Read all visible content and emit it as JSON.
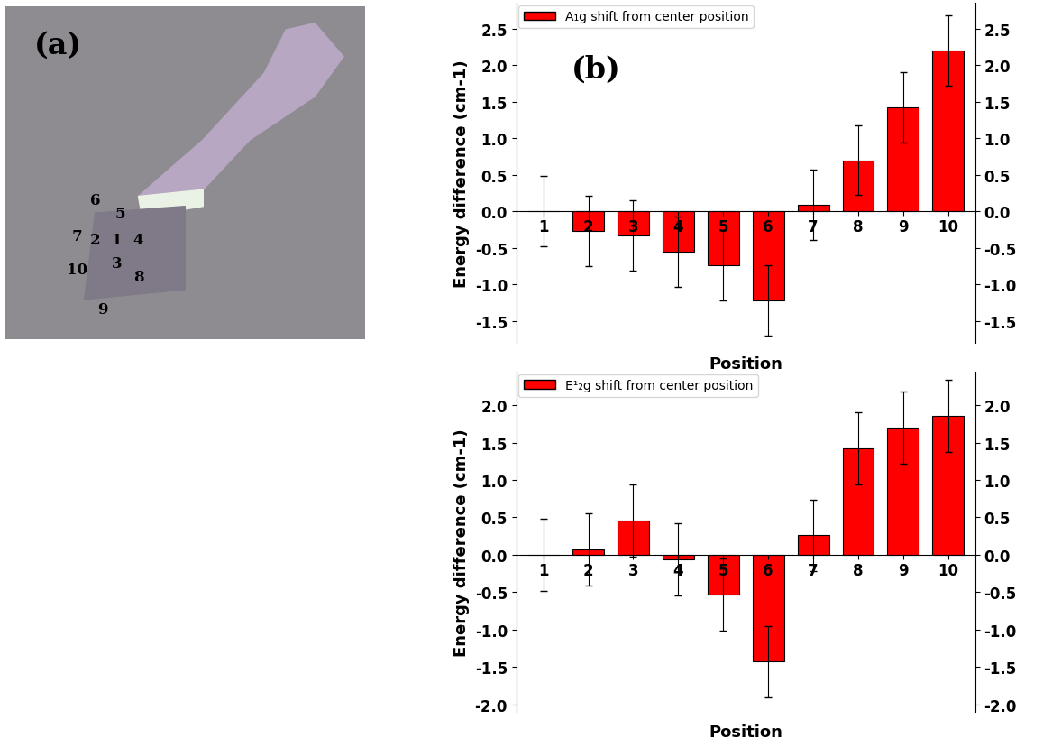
{
  "panel_a": {
    "label": "(a)",
    "point_labels": [
      "6",
      "5",
      "7",
      "2",
      "1",
      "4",
      "10",
      "3",
      "8",
      "9"
    ]
  },
  "chart_data": [
    {
      "type": "bar",
      "annotation": "(b)",
      "x_label": "Position",
      "y_label": "Energy difference (cm-1)",
      "categories": [
        "1",
        "2",
        "3",
        "4",
        "5",
        "6",
        "7",
        "8",
        "9",
        "10"
      ],
      "series": [
        {
          "name": "A₁g shift from center position",
          "color": "#ff0000",
          "values": [
            0.0,
            -0.27,
            -0.33,
            -0.55,
            -0.74,
            -1.22,
            0.09,
            0.7,
            1.42,
            2.2
          ],
          "errors": [
            0.48,
            0.48,
            0.48,
            0.48,
            0.48,
            0.48,
            0.48,
            0.48,
            0.48,
            0.48
          ]
        }
      ],
      "ylim": [
        -1.8,
        2.85
      ],
      "yticks": [
        {
          "value": -1.5,
          "label": "-1.5"
        },
        {
          "value": -1.0,
          "label": "-1.0"
        },
        {
          "value": -0.5,
          "label": "-0.5"
        },
        {
          "value": 0.0,
          "label": "0.0"
        },
        {
          "value": 0.5,
          "label": "0.5"
        },
        {
          "value": 1.0,
          "label": "1.0"
        },
        {
          "value": 1.5,
          "label": "1.5"
        },
        {
          "value": 2.0,
          "label": "2.0"
        },
        {
          "value": 2.5,
          "label": "2.5"
        }
      ],
      "legend": "upper left",
      "grid": false
    },
    {
      "type": "bar",
      "x_label": "Position",
      "y_label": "Energy difference (cm-1)",
      "categories": [
        "1",
        "2",
        "3",
        "4",
        "5",
        "6",
        "7",
        "8",
        "9",
        "10"
      ],
      "series": [
        {
          "name": "E¹₂g shift from center position",
          "color": "#ff0000",
          "values": [
            0.0,
            0.07,
            0.46,
            -0.06,
            -0.53,
            -1.43,
            0.26,
            1.42,
            1.7,
            1.86
          ],
          "errors": [
            0.48,
            0.48,
            0.48,
            0.48,
            0.48,
            0.48,
            0.48,
            0.48,
            0.48,
            0.48
          ]
        }
      ],
      "ylim": [
        -2.1,
        2.45
      ],
      "yticks": [
        {
          "value": -2.0,
          "label": "-2.0"
        },
        {
          "value": -1.5,
          "label": "-1.5"
        },
        {
          "value": -1.0,
          "label": "-1.0"
        },
        {
          "value": -0.5,
          "label": "-0.5"
        },
        {
          "value": 0.0,
          "label": "0.0"
        },
        {
          "value": 0.5,
          "label": "0.5"
        },
        {
          "value": 1.0,
          "label": "1.0"
        },
        {
          "value": 1.5,
          "label": "1.5"
        },
        {
          "value": 2.0,
          "label": "2.0"
        }
      ],
      "legend": "upper left",
      "grid": false
    }
  ]
}
